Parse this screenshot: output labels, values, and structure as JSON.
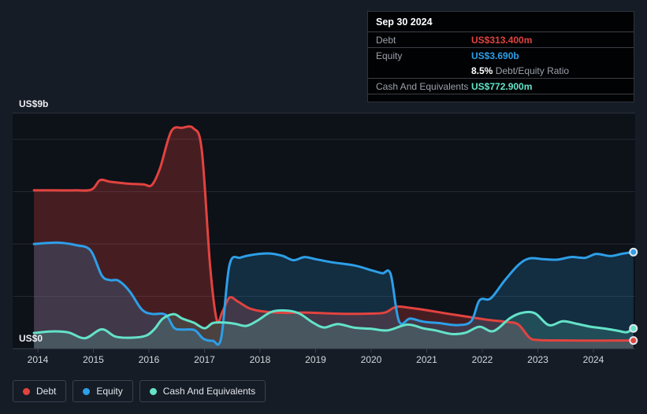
{
  "tooltip": {
    "date": "Sep 30 2024",
    "debt": {
      "label": "Debt",
      "value": "US$313.400m"
    },
    "equity": {
      "label": "Equity",
      "value": "US$3.690b"
    },
    "ratio": {
      "pct": "8.5%",
      "label": "Debt/Equity Ratio"
    },
    "cash": {
      "label": "Cash And Equivalents",
      "value": "US$772.900m"
    }
  },
  "axes": {
    "y_top_label": "US$9b",
    "y_bottom_label": "US$0"
  },
  "legend": [
    {
      "label": "Debt",
      "color": "#e2433f"
    },
    {
      "label": "Equity",
      "color": "#2d9fe8"
    },
    {
      "label": "Cash And Equivalents",
      "color": "#64e3c9"
    }
  ],
  "colors": {
    "page_bg": "#161c26",
    "panel_bg": "#0d1118",
    "gridline": "#222933",
    "boundary_line": "#2c343f",
    "axis_line": "#39414d",
    "debt": "#e2433f",
    "equity": "#2d9fe8",
    "cash": "#64e3c9",
    "endpoint_ring": "#e1e7ec"
  },
  "chart_data": {
    "type": "area",
    "x_ticks": [
      2014,
      2015,
      2016,
      2017,
      2018,
      2019,
      2020,
      2021,
      2022,
      2023,
      2024
    ],
    "y_axis": {
      "min": 0,
      "max": 9,
      "unit": "US$ billions",
      "top_label": "US$9b",
      "bottom_label": "US$0",
      "gridline_values": [
        2,
        4,
        6,
        8
      ]
    },
    "legend_position": "bottom-left",
    "series": [
      {
        "name": "Debt",
        "color": "#e2433f",
        "fill": "rgba(226,67,63,0.27)",
        "end_value_label": "US$313.400m",
        "points": [
          [
            2013.93,
            6.05
          ],
          [
            2014.3,
            6.05
          ],
          [
            2014.7,
            6.05
          ],
          [
            2014.97,
            6.08
          ],
          [
            2015.12,
            6.44
          ],
          [
            2015.3,
            6.38
          ],
          [
            2015.6,
            6.31
          ],
          [
            2015.9,
            6.28
          ],
          [
            2016.05,
            6.25
          ],
          [
            2016.2,
            6.9
          ],
          [
            2016.4,
            8.3
          ],
          [
            2016.6,
            8.44
          ],
          [
            2016.8,
            8.42
          ],
          [
            2016.95,
            7.6
          ],
          [
            2017.1,
            3.2
          ],
          [
            2017.22,
            1.1
          ],
          [
            2017.32,
            1.4
          ],
          [
            2017.45,
            1.95
          ],
          [
            2017.6,
            1.8
          ],
          [
            2017.8,
            1.55
          ],
          [
            2018.0,
            1.44
          ],
          [
            2018.4,
            1.37
          ],
          [
            2018.8,
            1.38
          ],
          [
            2019.2,
            1.35
          ],
          [
            2019.6,
            1.33
          ],
          [
            2020.0,
            1.34
          ],
          [
            2020.25,
            1.38
          ],
          [
            2020.45,
            1.6
          ],
          [
            2020.7,
            1.56
          ],
          [
            2021.0,
            1.47
          ],
          [
            2021.4,
            1.33
          ],
          [
            2021.8,
            1.2
          ],
          [
            2022.1,
            1.1
          ],
          [
            2022.45,
            1.02
          ],
          [
            2022.65,
            0.92
          ],
          [
            2022.85,
            0.42
          ],
          [
            2023.0,
            0.33
          ],
          [
            2023.4,
            0.315
          ],
          [
            2023.8,
            0.31
          ],
          [
            2024.2,
            0.31
          ],
          [
            2024.72,
            0.313
          ]
        ]
      },
      {
        "name": "Equity",
        "color": "#2d9fe8",
        "fill": "rgba(45,159,232,0.20)",
        "end_value_label": "US$3.690b",
        "points": [
          [
            2013.93,
            4.0
          ],
          [
            2014.35,
            4.05
          ],
          [
            2014.7,
            3.95
          ],
          [
            2014.95,
            3.75
          ],
          [
            2015.15,
            2.8
          ],
          [
            2015.3,
            2.62
          ],
          [
            2015.45,
            2.6
          ],
          [
            2015.65,
            2.2
          ],
          [
            2015.87,
            1.5
          ],
          [
            2016.05,
            1.33
          ],
          [
            2016.3,
            1.3
          ],
          [
            2016.45,
            0.8
          ],
          [
            2016.6,
            0.73
          ],
          [
            2016.82,
            0.71
          ],
          [
            2016.98,
            0.38
          ],
          [
            2017.15,
            0.3
          ],
          [
            2017.3,
            0.4
          ],
          [
            2017.45,
            3.2
          ],
          [
            2017.65,
            3.48
          ],
          [
            2017.9,
            3.6
          ],
          [
            2018.15,
            3.64
          ],
          [
            2018.4,
            3.55
          ],
          [
            2018.6,
            3.38
          ],
          [
            2018.8,
            3.5
          ],
          [
            2019.0,
            3.42
          ],
          [
            2019.3,
            3.3
          ],
          [
            2019.7,
            3.18
          ],
          [
            2020.0,
            3.0
          ],
          [
            2020.2,
            2.88
          ],
          [
            2020.35,
            2.85
          ],
          [
            2020.5,
            1.05
          ],
          [
            2020.7,
            1.15
          ],
          [
            2020.95,
            1.03
          ],
          [
            2021.25,
            0.97
          ],
          [
            2021.55,
            0.9
          ],
          [
            2021.8,
            1.05
          ],
          [
            2021.95,
            1.85
          ],
          [
            2022.15,
            1.92
          ],
          [
            2022.4,
            2.6
          ],
          [
            2022.65,
            3.2
          ],
          [
            2022.85,
            3.45
          ],
          [
            2023.1,
            3.42
          ],
          [
            2023.35,
            3.4
          ],
          [
            2023.6,
            3.5
          ],
          [
            2023.85,
            3.47
          ],
          [
            2024.05,
            3.62
          ],
          [
            2024.3,
            3.54
          ],
          [
            2024.5,
            3.62
          ],
          [
            2024.72,
            3.69
          ]
        ]
      },
      {
        "name": "Cash And Equivalents",
        "color": "#64e3c9",
        "fill": "rgba(100,227,201,0.18)",
        "end_value_label": "US$772.900m",
        "points": [
          [
            2013.93,
            0.6
          ],
          [
            2014.25,
            0.66
          ],
          [
            2014.55,
            0.62
          ],
          [
            2014.85,
            0.4
          ],
          [
            2015.15,
            0.74
          ],
          [
            2015.4,
            0.46
          ],
          [
            2015.7,
            0.42
          ],
          [
            2015.95,
            0.5
          ],
          [
            2016.1,
            0.75
          ],
          [
            2016.25,
            1.15
          ],
          [
            2016.45,
            1.32
          ],
          [
            2016.6,
            1.15
          ],
          [
            2016.8,
            1.0
          ],
          [
            2017.0,
            0.78
          ],
          [
            2017.15,
            0.98
          ],
          [
            2017.35,
            1.0
          ],
          [
            2017.55,
            0.95
          ],
          [
            2017.75,
            0.87
          ],
          [
            2017.95,
            1.07
          ],
          [
            2018.2,
            1.4
          ],
          [
            2018.45,
            1.46
          ],
          [
            2018.7,
            1.35
          ],
          [
            2018.95,
            1.0
          ],
          [
            2019.15,
            0.81
          ],
          [
            2019.4,
            0.94
          ],
          [
            2019.7,
            0.8
          ],
          [
            2020.0,
            0.76
          ],
          [
            2020.3,
            0.7
          ],
          [
            2020.65,
            0.92
          ],
          [
            2020.95,
            0.77
          ],
          [
            2021.15,
            0.7
          ],
          [
            2021.45,
            0.56
          ],
          [
            2021.7,
            0.61
          ],
          [
            2021.95,
            0.84
          ],
          [
            2022.2,
            0.67
          ],
          [
            2022.5,
            1.17
          ],
          [
            2022.72,
            1.37
          ],
          [
            2022.95,
            1.35
          ],
          [
            2023.2,
            0.9
          ],
          [
            2023.45,
            1.05
          ],
          [
            2023.7,
            0.95
          ],
          [
            2023.95,
            0.84
          ],
          [
            2024.2,
            0.77
          ],
          [
            2024.45,
            0.68
          ],
          [
            2024.6,
            0.63
          ],
          [
            2024.72,
            0.773
          ]
        ]
      }
    ]
  }
}
